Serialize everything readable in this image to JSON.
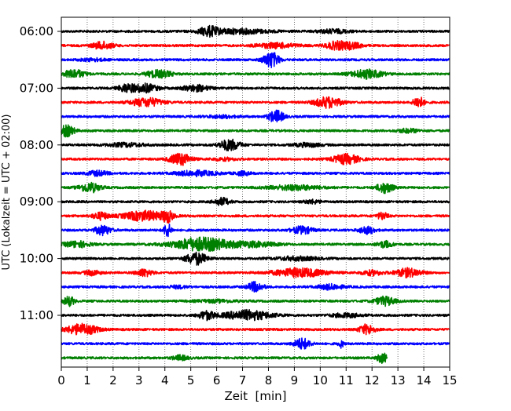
{
  "chart_data": {
    "type": "line",
    "subtype": "helicorder",
    "xlabel": "Zeit  [min]",
    "ylabel": "UTC (Lokalzeit = UTC + 02:00)",
    "xlim": [
      0,
      15
    ],
    "x_ticks": [
      "0",
      "1",
      "2",
      "3",
      "4",
      "5",
      "6",
      "7",
      "8",
      "9",
      "10",
      "11",
      "12",
      "13",
      "14",
      "15"
    ],
    "y_tick_labels": [
      "06:00",
      "07:00",
      "08:00",
      "09:00",
      "10:00",
      "11:00"
    ],
    "grid": "vertical dotted lines at each minute",
    "trace_interval_minutes": 15,
    "trace_count": 24,
    "trace_colors": [
      "#000000",
      "#ff0000",
      "#0000ff",
      "#008000"
    ],
    "last_trace_end_min": 12.6,
    "traces": [
      {
        "label": "06:00",
        "bursts": [
          [
            5.7,
            0.35,
            0.7
          ],
          [
            6.8,
            1.2,
            0.4
          ],
          [
            10.5,
            0.6,
            0.3
          ]
        ]
      },
      {
        "label": "06:15",
        "bursts": [
          [
            1.6,
            0.4,
            0.6
          ],
          [
            8.3,
            0.8,
            0.4
          ],
          [
            10.6,
            0.4,
            0.6
          ],
          [
            11.2,
            0.4,
            0.5
          ]
        ]
      },
      {
        "label": "06:30",
        "bursts": [
          [
            8.1,
            0.3,
            1.3
          ],
          [
            1.2,
            0.5,
            0.2
          ]
        ]
      },
      {
        "label": "06:45",
        "bursts": [
          [
            0.5,
            0.4,
            0.7
          ],
          [
            3.5,
            0.3,
            0.3
          ],
          [
            3.9,
            0.4,
            0.5
          ],
          [
            11.8,
            0.6,
            0.7
          ]
        ]
      },
      {
        "label": "07:00",
        "bursts": [
          [
            2.5,
            0.3,
            0.6
          ],
          [
            3.2,
            0.5,
            0.7
          ],
          [
            5.2,
            0.5,
            0.5
          ]
        ]
      },
      {
        "label": "07:15",
        "bursts": [
          [
            3.3,
            0.6,
            0.7
          ],
          [
            10.3,
            0.5,
            0.9
          ],
          [
            13.8,
            0.2,
            1.0
          ]
        ]
      },
      {
        "label": "07:30",
        "bursts": [
          [
            8.3,
            0.3,
            1.0
          ],
          [
            6.2,
            0.6,
            0.2
          ]
        ]
      },
      {
        "label": "07:45",
        "bursts": [
          [
            0.2,
            0.3,
            0.9
          ],
          [
            13.4,
            0.4,
            0.3
          ]
        ]
      },
      {
        "label": "08:00",
        "bursts": [
          [
            6.5,
            0.4,
            0.9
          ],
          [
            2.5,
            0.7,
            0.3
          ],
          [
            9.5,
            0.5,
            0.3
          ]
        ]
      },
      {
        "label": "08:15",
        "bursts": [
          [
            4.6,
            0.4,
            1.0
          ],
          [
            11.0,
            0.5,
            0.8
          ],
          [
            6.3,
            0.5,
            0.2
          ]
        ]
      },
      {
        "label": "08:30",
        "bursts": [
          [
            1.4,
            0.4,
            0.4
          ],
          [
            5.2,
            0.8,
            0.4
          ],
          [
            7.0,
            0.3,
            0.3
          ]
        ]
      },
      {
        "label": "08:45",
        "bursts": [
          [
            1.1,
            0.4,
            0.8
          ],
          [
            9.0,
            1.0,
            0.4
          ],
          [
            12.5,
            0.3,
            0.9
          ]
        ]
      },
      {
        "label": "09:00",
        "bursts": [
          [
            6.2,
            0.3,
            0.6
          ],
          [
            9.7,
            0.3,
            0.3
          ]
        ]
      },
      {
        "label": "09:15",
        "bursts": [
          [
            1.5,
            0.3,
            0.6
          ],
          [
            3.2,
            0.8,
            0.8
          ],
          [
            4.1,
            0.2,
            0.9
          ],
          [
            12.4,
            0.2,
            0.6
          ]
        ]
      },
      {
        "label": "09:30",
        "bursts": [
          [
            1.6,
            0.3,
            0.8
          ],
          [
            4.1,
            0.15,
            1.1
          ],
          [
            9.3,
            0.4,
            0.6
          ],
          [
            11.8,
            0.3,
            0.6
          ]
        ]
      },
      {
        "label": "09:45",
        "bursts": [
          [
            0.6,
            0.5,
            0.5
          ],
          [
            5.4,
            1.1,
            1.1
          ],
          [
            7.4,
            0.9,
            0.4
          ],
          [
            12.5,
            0.3,
            0.5
          ]
        ]
      },
      {
        "label": "10:00",
        "bursts": [
          [
            5.2,
            0.4,
            1.0
          ],
          [
            9.1,
            0.8,
            0.3
          ]
        ]
      },
      {
        "label": "10:15",
        "bursts": [
          [
            1.2,
            0.3,
            0.4
          ],
          [
            3.2,
            0.3,
            0.6
          ],
          [
            9.2,
            1.0,
            0.7
          ],
          [
            12.0,
            0.4,
            0.4
          ],
          [
            13.4,
            0.5,
            0.7
          ]
        ]
      },
      {
        "label": "10:30",
        "bursts": [
          [
            7.5,
            0.3,
            0.8
          ],
          [
            10.4,
            0.5,
            0.4
          ],
          [
            4.5,
            0.4,
            0.2
          ]
        ]
      },
      {
        "label": "10:45",
        "bursts": [
          [
            0.3,
            0.2,
            0.8
          ],
          [
            12.5,
            0.4,
            0.7
          ],
          [
            6.0,
            0.8,
            0.2
          ]
        ]
      },
      {
        "label": "11:00",
        "bursts": [
          [
            5.6,
            0.3,
            0.7
          ],
          [
            7.2,
            0.9,
            0.8
          ],
          [
            11.0,
            0.6,
            0.3
          ]
        ]
      },
      {
        "label": "11:15",
        "bursts": [
          [
            0.8,
            0.6,
            0.9
          ],
          [
            11.8,
            0.3,
            0.8
          ]
        ]
      },
      {
        "label": "11:30",
        "bursts": [
          [
            9.3,
            0.3,
            0.9
          ],
          [
            10.8,
            0.1,
            0.6
          ]
        ]
      },
      {
        "label": "11:45",
        "bursts": [
          [
            4.6,
            0.3,
            0.4
          ],
          [
            12.4,
            0.2,
            0.8
          ]
        ]
      }
    ]
  }
}
